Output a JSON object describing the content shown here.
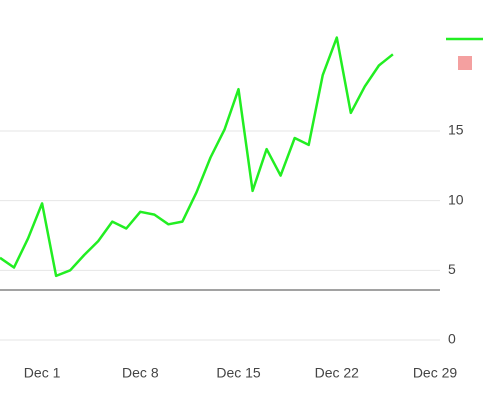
{
  "chart_data": {
    "type": "line",
    "x": [
      "Nov 28",
      "Nov 29",
      "Nov 30",
      "Dec 1",
      "Dec 2",
      "Dec 3",
      "Dec 4",
      "Dec 5",
      "Dec 6",
      "Dec 7",
      "Dec 8",
      "Dec 9",
      "Dec 10",
      "Dec 11",
      "Dec 12",
      "Dec 13",
      "Dec 14",
      "Dec 15",
      "Dec 16",
      "Dec 17",
      "Dec 18",
      "Dec 19",
      "Dec 20",
      "Dec 21",
      "Dec 22",
      "Dec 23",
      "Dec 24",
      "Dec 25",
      "Dec 26"
    ],
    "series": [
      {
        "color": "#22ee22",
        "values": [
          5.9,
          5.2,
          7.3,
          9.8,
          4.6,
          5.0,
          6.1,
          7.1,
          8.5,
          8.0,
          9.2,
          9.0,
          8.3,
          8.5,
          10.6,
          13.1,
          15.1,
          18.0,
          10.7,
          13.7,
          11.8,
          14.5,
          14.0,
          19.0,
          21.7,
          16.3,
          18.2,
          19.7,
          20.5
        ]
      }
    ],
    "xlim": [
      "Nov 28",
      "Dec 29"
    ],
    "xticks": [
      "Dec 1",
      "Dec 8",
      "Dec 15",
      "Dec 22",
      "Dec 29"
    ],
    "ylim": [
      0,
      24.4
    ],
    "yticks": [
      0,
      5,
      10,
      15
    ],
    "grid": true
  }
}
